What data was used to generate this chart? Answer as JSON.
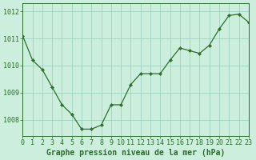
{
  "x": [
    0,
    1,
    2,
    3,
    4,
    5,
    6,
    7,
    8,
    9,
    10,
    11,
    12,
    13,
    14,
    15,
    16,
    17,
    18,
    19,
    20,
    21,
    22,
    23
  ],
  "y": [
    1011.1,
    1010.2,
    1009.85,
    1009.2,
    1008.55,
    1008.2,
    1007.65,
    1007.65,
    1007.8,
    1008.55,
    1008.55,
    1009.3,
    1009.7,
    1009.7,
    1009.7,
    1010.2,
    1010.65,
    1010.55,
    1010.45,
    1010.75,
    1011.35,
    1011.85,
    1011.9,
    1011.6
  ],
  "xlim": [
    0,
    23
  ],
  "ylim": [
    1007.4,
    1012.3
  ],
  "yticks": [
    1008,
    1009,
    1010,
    1011,
    1012
  ],
  "xticks": [
    0,
    1,
    2,
    3,
    4,
    5,
    6,
    7,
    8,
    9,
    10,
    11,
    12,
    13,
    14,
    15,
    16,
    17,
    18,
    19,
    20,
    21,
    22,
    23
  ],
  "xlabel": "Graphe pression niveau de la mer (hPa)",
  "line_color": "#2d6e2d",
  "marker_color": "#2d6e2d",
  "bg_color": "#cceedd",
  "grid_color": "#99ccbb",
  "axis_color": "#2d6e2d",
  "tick_label_color": "#2d6e2d",
  "xlabel_color": "#2d6e2d",
  "xlabel_fontsize": 7.0,
  "tick_fontsize": 6.0
}
